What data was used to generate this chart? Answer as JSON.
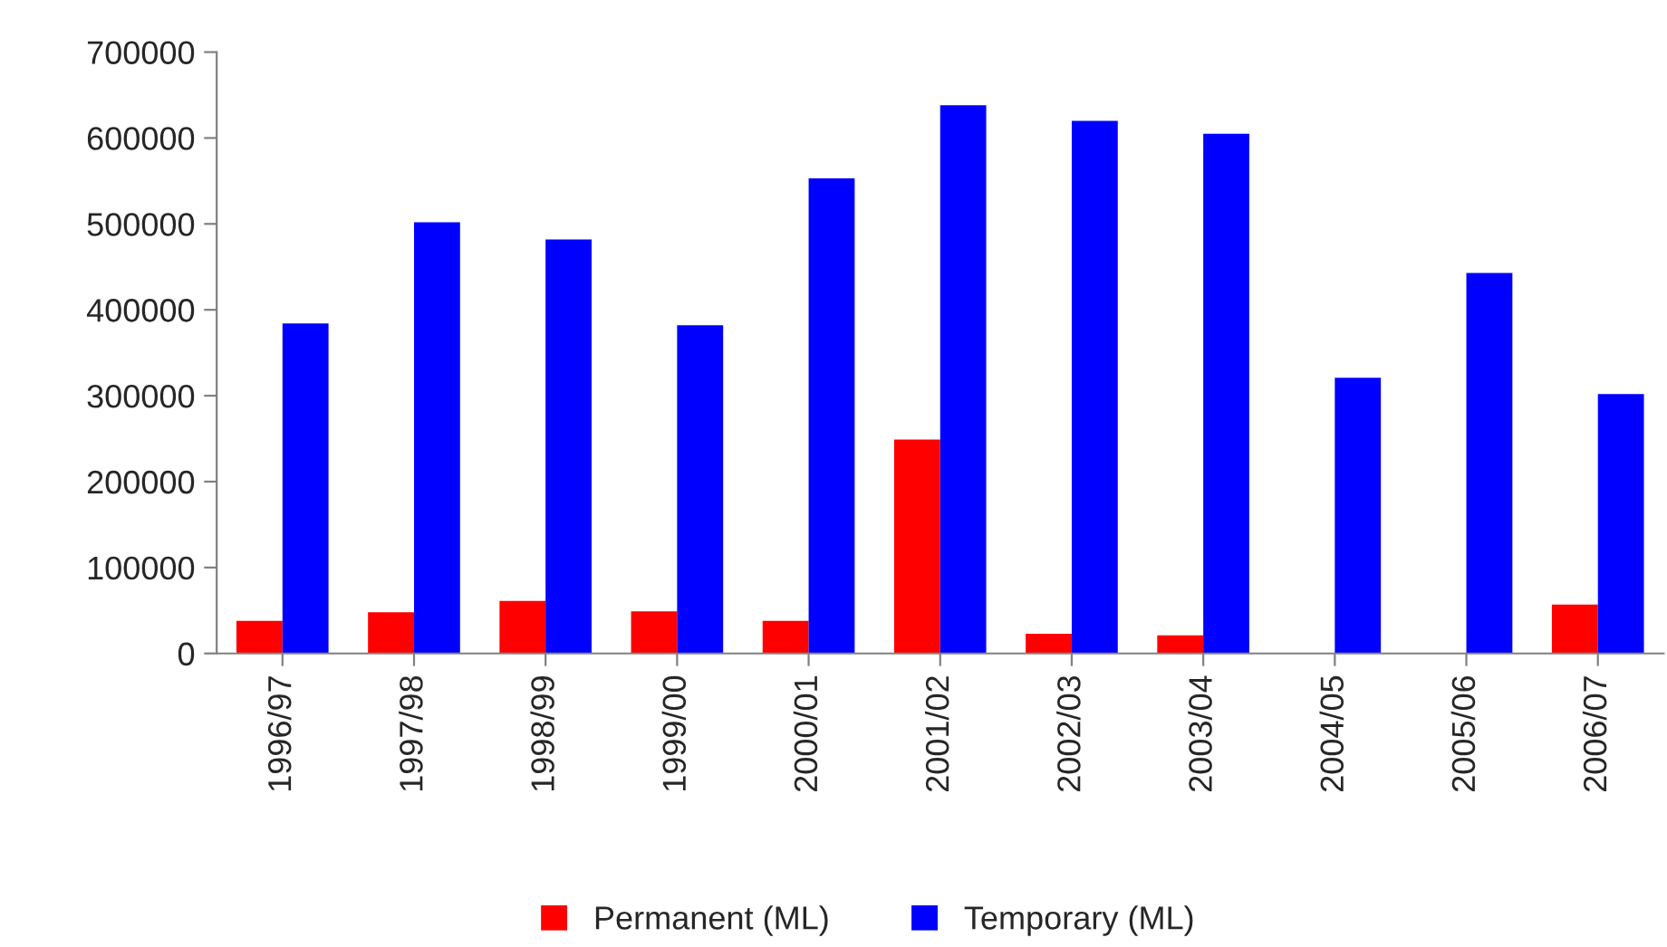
{
  "chart_data": {
    "type": "bar",
    "categories": [
      "1996/97",
      "1997/98",
      "1998/99",
      "1999/00",
      "2000/01",
      "2001/02",
      "2002/03",
      "2003/04",
      "2004/05",
      "2005/06",
      "2006/07"
    ],
    "series": [
      {
        "name": "Permanent (ML)",
        "color": "#ff0000",
        "values": [
          38000,
          48000,
          61000,
          49000,
          38000,
          249000,
          23000,
          21000,
          null,
          null,
          57000
        ]
      },
      {
        "name": "Temporary (ML)",
        "color": "#0000ff",
        "values": [
          384000,
          502000,
          482000,
          382000,
          553000,
          638000,
          620000,
          605000,
          321000,
          443000,
          302000
        ]
      }
    ],
    "ylim": [
      0,
      700000
    ],
    "yticks": [
      0,
      100000,
      200000,
      300000,
      400000,
      500000,
      600000,
      700000
    ],
    "grid": false,
    "legend": "bottom"
  }
}
